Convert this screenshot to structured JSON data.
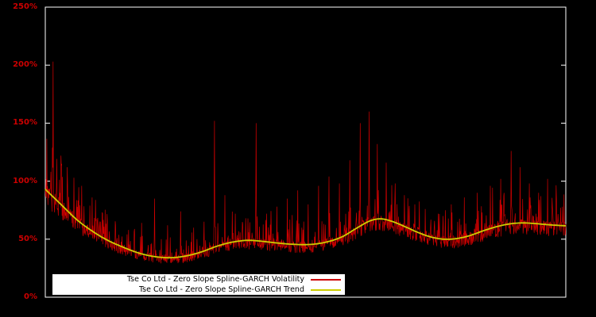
{
  "chart_data": {
    "type": "line",
    "title": "",
    "background": "#000000",
    "frame_color": "#ffffff",
    "axis_label_color": "#cc0000",
    "grid": false,
    "ylim": [
      0,
      250
    ],
    "yticks": [
      {
        "value": 0,
        "label": "0%"
      },
      {
        "value": 50,
        "label": "50%"
      },
      {
        "value": 100,
        "label": "100%"
      },
      {
        "value": 150,
        "label": "150%"
      },
      {
        "value": 200,
        "label": "200%"
      },
      {
        "value": 250,
        "label": "250%"
      }
    ],
    "legend": {
      "position": "bottom-left-inside",
      "background": "#ffffff",
      "text_color": "#000000",
      "entries": [
        {
          "label": "Tse Co Ltd - Zero Slope Spline-GARCH Volatility",
          "color": "#cc0000"
        },
        {
          "label": "Tse Co Ltd - Zero Slope Spline-GARCH Trend",
          "color": "#cdcd00"
        }
      ]
    },
    "series": [
      {
        "name": "Tse Co Ltd - Zero Slope Spline-GARCH Volatility",
        "color": "#cc0000",
        "style": "noisy",
        "spikes": [
          [
            0.015,
            203
          ],
          [
            0.03,
            122
          ],
          [
            0.042,
            112
          ],
          [
            0.055,
            103
          ],
          [
            0.07,
            96
          ],
          [
            0.09,
            86
          ],
          [
            0.11,
            72
          ],
          [
            0.135,
            62
          ],
          [
            0.16,
            58
          ],
          [
            0.185,
            64
          ],
          [
            0.21,
            85
          ],
          [
            0.235,
            62
          ],
          [
            0.26,
            74
          ],
          [
            0.285,
            60
          ],
          [
            0.305,
            65
          ],
          [
            0.325,
            152
          ],
          [
            0.345,
            88
          ],
          [
            0.365,
            72
          ],
          [
            0.385,
            68
          ],
          [
            0.405,
            150
          ],
          [
            0.425,
            72
          ],
          [
            0.445,
            78
          ],
          [
            0.465,
            85
          ],
          [
            0.485,
            92
          ],
          [
            0.505,
            80
          ],
          [
            0.525,
            96
          ],
          [
            0.545,
            104
          ],
          [
            0.565,
            98
          ],
          [
            0.585,
            118
          ],
          [
            0.605,
            150
          ],
          [
            0.622,
            160
          ],
          [
            0.638,
            132
          ],
          [
            0.655,
            116
          ],
          [
            0.672,
            98
          ],
          [
            0.69,
            88
          ],
          [
            0.71,
            80
          ],
          [
            0.73,
            76
          ],
          [
            0.755,
            72
          ],
          [
            0.78,
            80
          ],
          [
            0.805,
            86
          ],
          [
            0.83,
            90
          ],
          [
            0.855,
            96
          ],
          [
            0.875,
            102
          ],
          [
            0.895,
            126
          ],
          [
            0.912,
            112
          ],
          [
            0.93,
            98
          ],
          [
            0.948,
            90
          ],
          [
            0.965,
            102
          ],
          [
            0.982,
            84
          ]
        ]
      },
      {
        "name": "Tse Co Ltd - Zero Slope Spline-GARCH Trend",
        "color": "#cdcd00",
        "style": "smooth",
        "points": [
          [
            0.0,
            93
          ],
          [
            0.03,
            80
          ],
          [
            0.06,
            67
          ],
          [
            0.09,
            57
          ],
          [
            0.12,
            49
          ],
          [
            0.15,
            43
          ],
          [
            0.18,
            38
          ],
          [
            0.21,
            35
          ],
          [
            0.24,
            34
          ],
          [
            0.27,
            35.5
          ],
          [
            0.3,
            39
          ],
          [
            0.33,
            44
          ],
          [
            0.36,
            47.5
          ],
          [
            0.39,
            49
          ],
          [
            0.42,
            48
          ],
          [
            0.45,
            46.5
          ],
          [
            0.48,
            45.5
          ],
          [
            0.51,
            45.5
          ],
          [
            0.54,
            47.5
          ],
          [
            0.57,
            52
          ],
          [
            0.6,
            60
          ],
          [
            0.625,
            66
          ],
          [
            0.645,
            67.5
          ],
          [
            0.665,
            65.5
          ],
          [
            0.69,
            61
          ],
          [
            0.715,
            56
          ],
          [
            0.74,
            52
          ],
          [
            0.765,
            50
          ],
          [
            0.79,
            50.5
          ],
          [
            0.815,
            53
          ],
          [
            0.84,
            57
          ],
          [
            0.865,
            60.5
          ],
          [
            0.89,
            63
          ],
          [
            0.915,
            64
          ],
          [
            0.94,
            63.5
          ],
          [
            0.965,
            62.5
          ],
          [
            1.0,
            61.5
          ]
        ]
      }
    ],
    "noise": {
      "seed": 1337,
      "n_points": 1400,
      "band_low": 0.84,
      "band_span": 0.22,
      "burst_prob": 0.3,
      "burst_scale": 0.55
    }
  }
}
